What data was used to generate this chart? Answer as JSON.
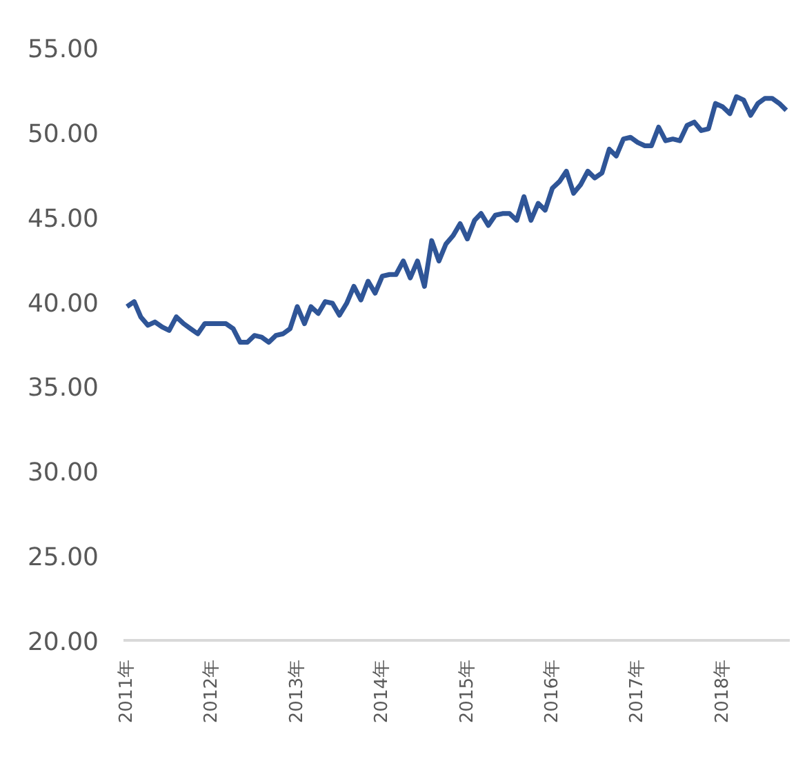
{
  "chart_data": {
    "type": "line",
    "x": [
      "2011-01",
      "2011-02",
      "2011-03",
      "2011-04",
      "2011-05",
      "2011-06",
      "2011-07",
      "2011-08",
      "2011-09",
      "2011-10",
      "2011-11",
      "2011-12",
      "2012-01",
      "2012-02",
      "2012-03",
      "2012-04",
      "2012-05",
      "2012-06",
      "2012-07",
      "2012-08",
      "2012-09",
      "2012-10",
      "2012-11",
      "2012-12",
      "2013-01",
      "2013-02",
      "2013-03",
      "2013-04",
      "2013-05",
      "2013-06",
      "2013-07",
      "2013-08",
      "2013-09",
      "2013-10",
      "2013-11",
      "2013-12",
      "2014-01",
      "2014-02",
      "2014-03",
      "2014-04",
      "2014-05",
      "2014-06",
      "2014-07",
      "2014-08",
      "2014-09",
      "2014-10",
      "2014-11",
      "2014-12",
      "2015-01",
      "2015-02",
      "2015-03",
      "2015-04",
      "2015-05",
      "2015-06",
      "2015-07",
      "2015-08",
      "2015-09",
      "2015-10",
      "2015-11",
      "2015-12",
      "2016-01",
      "2016-02",
      "2016-03",
      "2016-04",
      "2016-05",
      "2016-06",
      "2016-07",
      "2016-08",
      "2016-09",
      "2016-10",
      "2016-11",
      "2016-12",
      "2017-01",
      "2017-02",
      "2017-03",
      "2017-04",
      "2017-05",
      "2017-06",
      "2017-07",
      "2017-08",
      "2017-09",
      "2017-10",
      "2017-11",
      "2017-12",
      "2018-01",
      "2018-02",
      "2018-03",
      "2018-04",
      "2018-05",
      "2018-06",
      "2018-07",
      "2018-08",
      "2018-09",
      "2018-10"
    ],
    "series": [
      {
        "color": "#2f5597",
        "values": [
          39.7,
          40.0,
          39.1,
          38.6,
          38.8,
          38.5,
          38.3,
          39.1,
          38.7,
          38.4,
          38.1,
          38.7,
          38.7,
          38.7,
          38.7,
          38.4,
          37.6,
          37.6,
          38.0,
          37.9,
          37.6,
          38.0,
          38.1,
          38.4,
          39.7,
          38.7,
          39.7,
          39.3,
          40.0,
          39.9,
          39.2,
          39.9,
          40.9,
          40.1,
          41.2,
          40.5,
          41.5,
          41.6,
          41.6,
          42.4,
          41.4,
          42.4,
          40.9,
          43.6,
          42.4,
          43.4,
          43.9,
          44.6,
          43.7,
          44.8,
          45.2,
          44.5,
          45.1,
          45.2,
          45.2,
          44.8,
          46.2,
          44.8,
          45.8,
          45.4,
          46.7,
          47.1,
          47.7,
          46.4,
          46.9,
          47.7,
          47.3,
          47.6,
          49.0,
          48.6,
          49.6,
          49.7,
          49.4,
          49.2,
          49.2,
          50.3,
          49.5,
          49.6,
          49.5,
          50.4,
          50.6,
          50.1,
          50.2,
          51.7,
          51.5,
          51.1,
          52.1,
          51.9,
          51.0,
          51.7,
          52.0,
          52.0,
          51.7,
          51.3
        ]
      }
    ],
    "xlim": [
      "2010-12-17",
      "2018-10-16"
    ],
    "xticks": [
      {
        "value": "2011-01",
        "label": "2011年"
      },
      {
        "value": "2012-01",
        "label": "2012年"
      },
      {
        "value": "2013-01",
        "label": "2013年"
      },
      {
        "value": "2014-01",
        "label": "2014年"
      },
      {
        "value": "2015-01",
        "label": "2015年"
      },
      {
        "value": "2016-01",
        "label": "2016年"
      },
      {
        "value": "2017-01",
        "label": "2017年"
      },
      {
        "value": "2018-01",
        "label": "2018年"
      }
    ],
    "ylim": [
      20,
      55
    ],
    "yticks": [
      {
        "value": 20,
        "label": "20.00"
      },
      {
        "value": 25,
        "label": "25.00"
      },
      {
        "value": 30,
        "label": "30.00"
      },
      {
        "value": 35,
        "label": "35.00"
      },
      {
        "value": 40,
        "label": "40.00"
      },
      {
        "value": 45,
        "label": "45.00"
      },
      {
        "value": 50,
        "label": "50.00"
      },
      {
        "value": 55,
        "label": "55.00"
      }
    ],
    "grid": false,
    "marker": "none",
    "line_style": "solid"
  }
}
